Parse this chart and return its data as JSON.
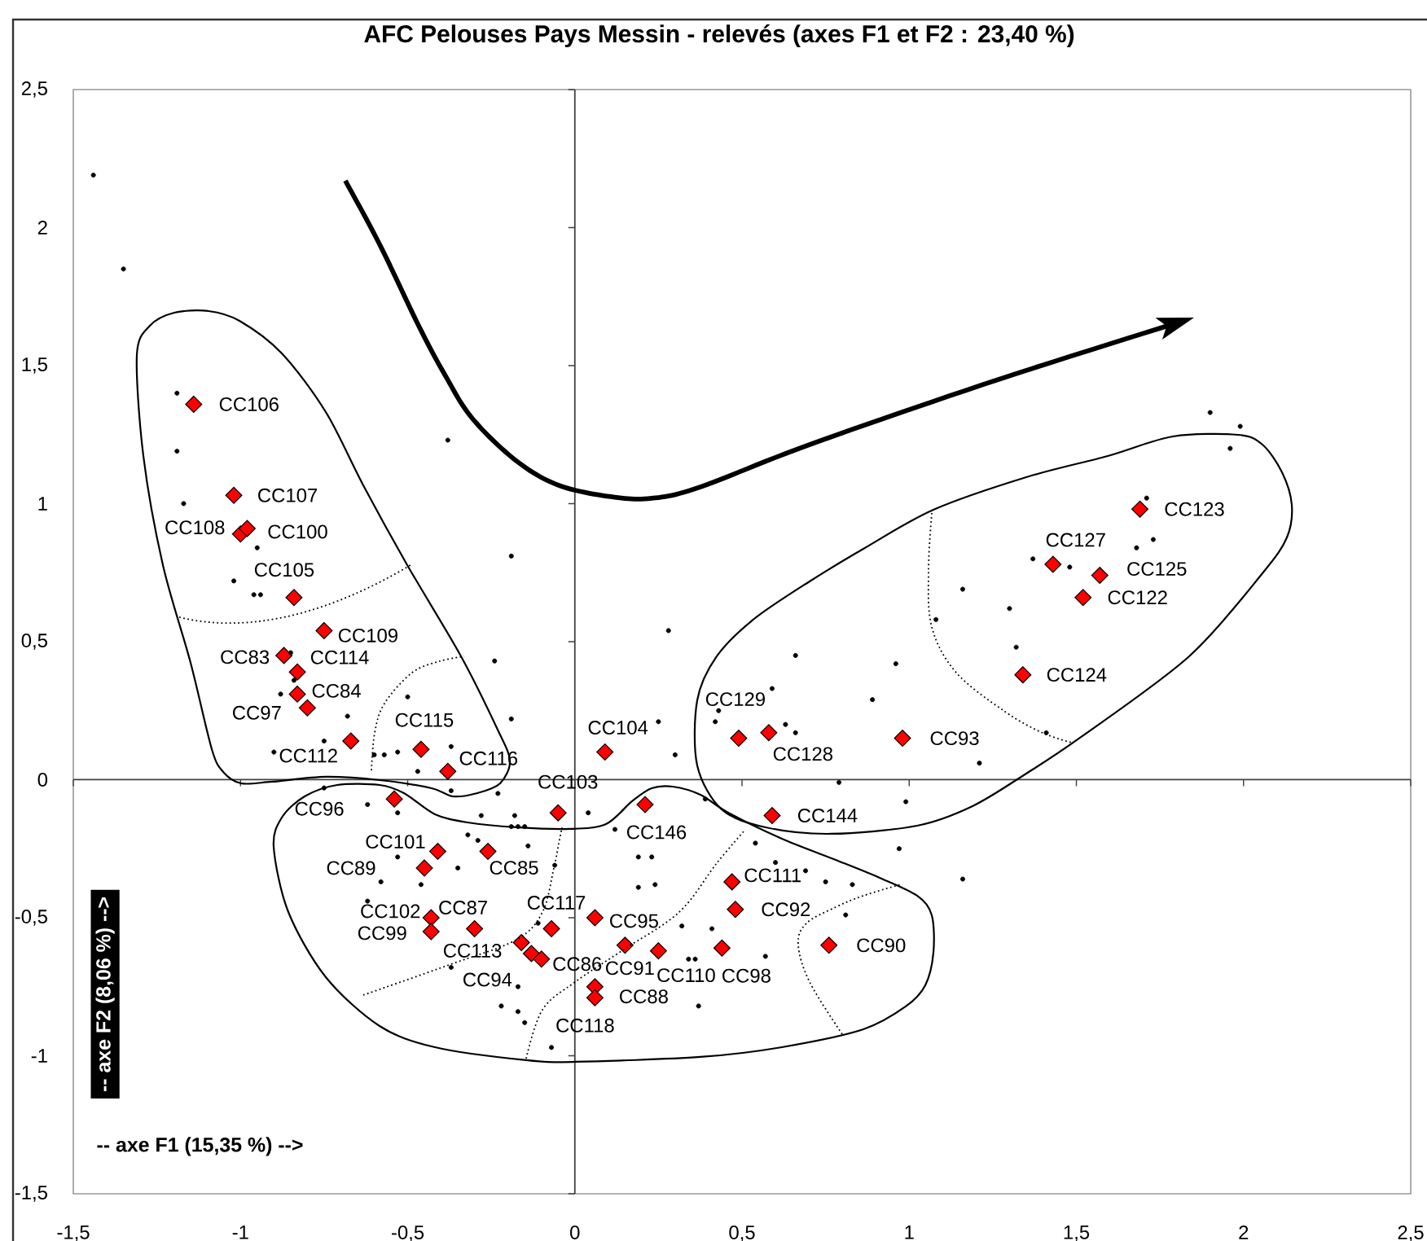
{
  "chart_data": {
    "type": "scatter",
    "title": "AFC Pelouses Pays Messin - relevés (axes F1 et F2 : 23,40 %)",
    "xlabel": "-- axe F1 (15,35 %) -->",
    "ylabel": "-- axe F2 (8,06 %) -->",
    "xlim": [
      -1.5,
      2.5
    ],
    "ylim": [
      -1.5,
      2.5
    ],
    "xticks": [
      {
        "value": -1.5,
        "label": "-1,5"
      },
      -1,
      {
        "value": -0.5,
        "label": "-0,5"
      },
      0,
      {
        "value": 0.5,
        "label": "0,5"
      },
      1,
      {
        "value": 1.5,
        "label": "1,5"
      },
      2,
      {
        "value": 2.5,
        "label": "2,5"
      }
    ],
    "yticks": [
      {
        "value": -1.5,
        "label": "-1,5"
      },
      -1,
      {
        "value": -0.5,
        "label": "-0,5"
      },
      0,
      {
        "value": 0.5,
        "label": "0,5"
      },
      1,
      {
        "value": 1.5,
        "label": "1,5"
      },
      2,
      {
        "value": 2.5,
        "label": "2,5"
      }
    ],
    "series": [
      {
        "color": "#ff0000",
        "marker": "diamond",
        "x": [
          -1.14,
          -1.02,
          -1.0,
          -0.98,
          -0.84,
          -0.75,
          -0.87,
          -0.83,
          -0.83,
          -0.8,
          -0.67,
          -0.46,
          -0.38,
          -0.54,
          -0.05,
          0.09,
          0.21,
          -0.41,
          -0.26,
          -0.45,
          -0.43,
          -0.43,
          -0.3,
          -0.07,
          0.06,
          -0.16,
          -0.13,
          -0.1,
          0.15,
          0.25,
          0.44,
          0.06,
          0.06,
          0.47,
          0.48,
          0.76,
          0.59,
          0.49,
          0.58,
          0.98,
          1.34,
          1.43,
          1.57,
          1.52,
          1.69
        ],
        "values": [
          1.36,
          1.03,
          0.89,
          0.91,
          0.66,
          0.54,
          0.45,
          0.39,
          0.31,
          0.26,
          0.14,
          0.11,
          0.03,
          -0.07,
          -0.12,
          0.1,
          -0.09,
          -0.26,
          -0.26,
          -0.32,
          -0.5,
          -0.55,
          -0.54,
          -0.54,
          -0.5,
          -0.59,
          -0.63,
          -0.65,
          -0.6,
          -0.62,
          -0.61,
          -0.75,
          -0.79,
          -0.37,
          -0.47,
          -0.6,
          -0.13,
          0.15,
          0.17,
          0.15,
          0.38,
          0.78,
          0.74,
          0.66,
          0.98
        ]
      },
      {
        "color": "#000000",
        "marker": "circle",
        "x": [
          -1.44,
          -1.35,
          -1.19,
          -1.19,
          -0.38,
          -1.17,
          -0.95,
          -1.02,
          -0.96,
          -0.94,
          -0.19,
          0.28,
          -0.24,
          -0.85,
          -0.84,
          -0.88,
          -0.5,
          -0.68,
          -0.19,
          0.25,
          0.3,
          -0.9,
          -0.75,
          -0.6,
          -0.57,
          -0.53,
          -0.47,
          -0.37,
          -0.37,
          -0.23,
          -0.75,
          -0.62,
          -0.53,
          -0.28,
          -0.18,
          -0.19,
          -0.17,
          -0.15,
          -0.32,
          -0.29,
          -0.14,
          0.04,
          0.12,
          0.19,
          0.23,
          -0.53,
          -0.35,
          -0.06,
          -0.46,
          -0.58,
          -0.62,
          0.19,
          0.24,
          -0.11,
          -0.37,
          -0.17,
          -0.22,
          -0.17,
          -0.15,
          -0.07,
          0.34,
          0.36,
          0.32,
          0.37,
          0.41,
          1.71,
          1.68,
          1.73,
          1.37,
          1.48,
          1.16,
          1.3,
          1.08,
          1.32,
          0.66,
          0.96,
          0.89,
          0.59,
          0.43,
          0.42,
          0.63,
          0.66,
          1.41,
          1.21,
          0.79,
          0.99,
          0.39,
          0.54,
          0.97,
          0.6,
          1.16,
          1.9,
          1.99,
          1.96,
          0.69,
          0.75,
          0.83,
          0.81,
          0.57
        ],
        "values": [
          2.19,
          1.85,
          1.4,
          1.19,
          1.23,
          1.0,
          0.84,
          0.72,
          0.67,
          0.67,
          0.81,
          0.54,
          0.43,
          0.46,
          0.36,
          0.31,
          0.3,
          0.23,
          0.22,
          0.21,
          0.09,
          0.1,
          0.14,
          0.09,
          0.09,
          0.1,
          0.03,
          0.12,
          -0.04,
          -0.05,
          -0.03,
          -0.09,
          -0.12,
          -0.13,
          -0.13,
          -0.17,
          -0.17,
          -0.17,
          -0.2,
          -0.22,
          -0.24,
          -0.12,
          -0.18,
          -0.28,
          -0.28,
          -0.28,
          -0.32,
          -0.31,
          -0.38,
          -0.37,
          -0.44,
          -0.39,
          -0.38,
          -0.52,
          -0.68,
          -0.75,
          -0.82,
          -0.84,
          -0.88,
          -0.97,
          -0.65,
          -0.65,
          -0.53,
          -0.82,
          -0.54,
          1.02,
          0.84,
          0.87,
          0.8,
          0.77,
          0.69,
          0.62,
          0.58,
          0.48,
          0.45,
          0.42,
          0.29,
          0.33,
          0.25,
          0.21,
          0.2,
          0.17,
          0.17,
          0.06,
          -0.01,
          -0.08,
          -0.07,
          -0.23,
          -0.25,
          -0.3,
          -0.36,
          1.33,
          1.28,
          1.2,
          -0.33,
          -0.37,
          -0.38,
          -0.49,
          -0.64
        ]
      }
    ],
    "annotations": [
      {
        "text": "CC106",
        "x": -1.14,
        "y": 1.36
      },
      {
        "text": "CC107",
        "x": -1.02,
        "y": 1.03
      },
      {
        "text": "CC108",
        "x": -1.0,
        "y": 0.89
      },
      {
        "text": "CC100",
        "x": -0.98,
        "y": 0.91
      },
      {
        "text": "CC105",
        "x": -0.84,
        "y": 0.66
      },
      {
        "text": "CC109",
        "x": -0.75,
        "y": 0.54
      },
      {
        "text": "CC83",
        "x": -0.87,
        "y": 0.45
      },
      {
        "text": "CC114",
        "x": -0.83,
        "y": 0.39
      },
      {
        "text": "CC84",
        "x": -0.83,
        "y": 0.31
      },
      {
        "text": "CC97",
        "x": -0.8,
        "y": 0.26
      },
      {
        "text": "CC112",
        "x": -0.67,
        "y": 0.14
      },
      {
        "text": "CC115",
        "x": -0.46,
        "y": 0.11
      },
      {
        "text": "CC116",
        "x": -0.38,
        "y": 0.03
      },
      {
        "text": "CC96",
        "x": -0.54,
        "y": -0.07
      },
      {
        "text": "CC103",
        "x": -0.05,
        "y": -0.12
      },
      {
        "text": "CC104",
        "x": 0.09,
        "y": 0.1
      },
      {
        "text": "CC146",
        "x": 0.21,
        "y": -0.09
      },
      {
        "text": "CC101",
        "x": -0.41,
        "y": -0.26
      },
      {
        "text": "CC85",
        "x": -0.26,
        "y": -0.26
      },
      {
        "text": "CC89",
        "x": -0.45,
        "y": -0.32
      },
      {
        "text": "CC102",
        "x": -0.43,
        "y": -0.5
      },
      {
        "text": "CC99",
        "x": -0.43,
        "y": -0.55
      },
      {
        "text": "CC87",
        "x": -0.3,
        "y": -0.54
      },
      {
        "text": "CC117",
        "x": -0.07,
        "y": -0.54
      },
      {
        "text": "CC95",
        "x": 0.06,
        "y": -0.5
      },
      {
        "text": "CC113",
        "x": -0.16,
        "y": -0.59
      },
      {
        "text": "CC94",
        "x": -0.13,
        "y": -0.63
      },
      {
        "text": "CC86",
        "x": -0.1,
        "y": -0.65
      },
      {
        "text": "CC91",
        "x": 0.15,
        "y": -0.6
      },
      {
        "text": "CC110",
        "x": 0.25,
        "y": -0.62
      },
      {
        "text": "CC98",
        "x": 0.44,
        "y": -0.61
      },
      {
        "text": "CC88",
        "x": 0.06,
        "y": -0.75
      },
      {
        "text": "CC118",
        "x": 0.06,
        "y": -0.79
      },
      {
        "text": "CC111",
        "x": 0.47,
        "y": -0.37
      },
      {
        "text": "CC92",
        "x": 0.48,
        "y": -0.47
      },
      {
        "text": "CC90",
        "x": 0.76,
        "y": -0.6
      },
      {
        "text": "CC144",
        "x": 0.59,
        "y": -0.13
      },
      {
        "text": "CC129",
        "x": 0.49,
        "y": 0.15
      },
      {
        "text": "CC128",
        "x": 0.58,
        "y": 0.17
      },
      {
        "text": "CC93",
        "x": 0.98,
        "y": 0.15
      },
      {
        "text": "CC124",
        "x": 1.34,
        "y": 0.38
      },
      {
        "text": "CC127",
        "x": 1.43,
        "y": 0.78
      },
      {
        "text": "CC125",
        "x": 1.57,
        "y": 0.74
      },
      {
        "text": "CC122",
        "x": 1.52,
        "y": 0.66
      },
      {
        "text": "CC123",
        "x": 1.69,
        "y": 0.98
      }
    ]
  }
}
